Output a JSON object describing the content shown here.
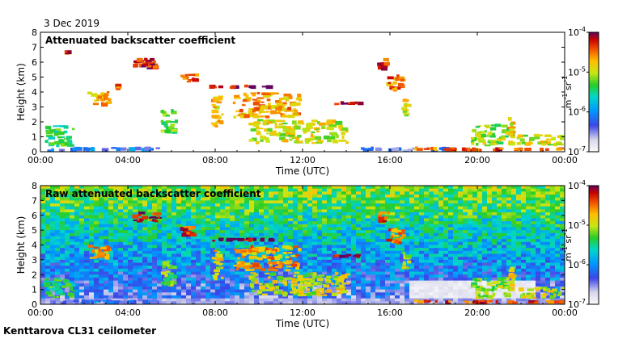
{
  "date_label": "3 Dec 2019",
  "footer_label": "Kenttarova CL31 ceilometer",
  "chart_data": [
    {
      "type": "heatmap",
      "title": "Attenuated backscatter coefficient",
      "xlabel": "Time (UTC)",
      "ylabel": "Height (km)",
      "xlim": [
        0,
        24
      ],
      "ylim": [
        0,
        8
      ],
      "x_tick_labels": [
        "00:00",
        "04:00",
        "08:00",
        "12:00",
        "16:00",
        "20:00",
        "00:00"
      ],
      "y_tick_labels": [
        "0",
        "1",
        "2",
        "3",
        "4",
        "5",
        "6",
        "7",
        "8"
      ],
      "colorbar": {
        "scale": "log",
        "range": [
          1e-07,
          0.0001
        ],
        "tick_labels": [
          {
            "base": "10",
            "exp": "-7"
          },
          {
            "base": "10",
            "exp": "-6"
          },
          {
            "base": "10",
            "exp": "-5"
          },
          {
            "base": "10",
            "exp": "-4"
          }
        ],
        "label": {
          "unit1": "m",
          "exp1": "-1",
          "unit2": "sr",
          "exp2": "-1"
        }
      },
      "background_noise": false,
      "features": [
        {
          "t0": 0.3,
          "t1": 5.5,
          "h0": 0.0,
          "h1": 0.35,
          "level": 0.3
        },
        {
          "t0": 0.1,
          "t1": 1.6,
          "h0": 0.3,
          "h1": 1.8,
          "level": 0.55
        },
        {
          "t0": 1.1,
          "t1": 1.3,
          "h0": 6.7,
          "h1": 6.8,
          "level": 0.9
        },
        {
          "t0": 2.1,
          "t1": 3.3,
          "h0": 3.0,
          "h1": 4.1,
          "level": 0.8
        },
        {
          "t0": 3.4,
          "t1": 3.7,
          "h0": 4.0,
          "h1": 4.6,
          "level": 0.85
        },
        {
          "t0": 4.2,
          "t1": 5.6,
          "h0": 5.5,
          "h1": 6.3,
          "level": 0.95
        },
        {
          "t0": 5.5,
          "t1": 6.3,
          "h0": 1.2,
          "h1": 3.0,
          "level": 0.6
        },
        {
          "t0": 6.4,
          "t1": 7.3,
          "h0": 4.5,
          "h1": 5.3,
          "level": 0.9
        },
        {
          "t0": 7.7,
          "t1": 10.8,
          "h0": 4.2,
          "h1": 4.5,
          "level": 1.0
        },
        {
          "t0": 7.8,
          "t1": 8.4,
          "h0": 1.6,
          "h1": 3.8,
          "level": 0.75
        },
        {
          "t0": 8.8,
          "t1": 12.0,
          "h0": 2.2,
          "h1": 4.0,
          "level": 0.8
        },
        {
          "t0": 9.5,
          "t1": 14.2,
          "h0": 0.5,
          "h1": 2.2,
          "level": 0.7
        },
        {
          "t0": 13.2,
          "t1": 14.9,
          "h0": 3.1,
          "h1": 3.4,
          "level": 0.95
        },
        {
          "t0": 15.4,
          "t1": 16.0,
          "h0": 5.4,
          "h1": 6.3,
          "level": 0.9
        },
        {
          "t0": 15.8,
          "t1": 16.8,
          "h0": 4.0,
          "h1": 5.2,
          "level": 0.85
        },
        {
          "t0": 16.5,
          "t1": 17.0,
          "h0": 2.3,
          "h1": 3.6,
          "level": 0.7
        },
        {
          "t0": 14.5,
          "t1": 19.0,
          "h0": 0.0,
          "h1": 0.35,
          "level": 0.25
        },
        {
          "t0": 17.1,
          "t1": 18.4,
          "h0": 0.05,
          "h1": 0.35,
          "level": 0.85
        },
        {
          "t0": 18.4,
          "t1": 24.0,
          "h0": 0.0,
          "h1": 0.3,
          "level": 0.9
        },
        {
          "t0": 19.7,
          "t1": 21.8,
          "h0": 0.35,
          "h1": 1.9,
          "level": 0.65
        },
        {
          "t0": 21.4,
          "t1": 21.8,
          "h0": 0.8,
          "h1": 2.6,
          "level": 0.75
        },
        {
          "t0": 21.8,
          "t1": 24.0,
          "h0": 0.35,
          "h1": 1.2,
          "level": 0.7
        }
      ]
    },
    {
      "type": "heatmap",
      "title": "Raw attenuated backscatter coefficient",
      "xlabel": "Time (UTC)",
      "ylabel": "Height (km)",
      "xlim": [
        0,
        24
      ],
      "ylim": [
        0,
        8
      ],
      "x_tick_labels": [
        "00:00",
        "04:00",
        "08:00",
        "12:00",
        "16:00",
        "20:00",
        "00:00"
      ],
      "y_tick_labels": [
        "0",
        "1",
        "2",
        "3",
        "4",
        "5",
        "6",
        "7",
        "8"
      ],
      "colorbar": {
        "scale": "log",
        "range": [
          1e-07,
          0.0001
        ],
        "tick_labels": [
          {
            "base": "10",
            "exp": "-7"
          },
          {
            "base": "10",
            "exp": "-6"
          },
          {
            "base": "10",
            "exp": "-5"
          },
          {
            "base": "10",
            "exp": "-4"
          }
        ],
        "label": {
          "unit1": "m",
          "exp1": "-1",
          "unit2": "sr",
          "exp2": "-1"
        }
      },
      "background_noise": true,
      "features": [
        {
          "t0": 0.3,
          "t1": 5.5,
          "h0": 0.0,
          "h1": 0.35,
          "level": 0.3
        },
        {
          "t0": 0.1,
          "t1": 1.6,
          "h0": 0.3,
          "h1": 1.8,
          "level": 0.55
        },
        {
          "t0": 2.1,
          "t1": 3.3,
          "h0": 3.0,
          "h1": 4.1,
          "level": 0.8
        },
        {
          "t0": 4.2,
          "t1": 5.6,
          "h0": 5.5,
          "h1": 6.3,
          "level": 0.95
        },
        {
          "t0": 5.5,
          "t1": 6.3,
          "h0": 1.2,
          "h1": 3.0,
          "level": 0.6
        },
        {
          "t0": 6.4,
          "t1": 7.3,
          "h0": 4.5,
          "h1": 5.3,
          "level": 0.9
        },
        {
          "t0": 7.7,
          "t1": 10.8,
          "h0": 4.2,
          "h1": 4.5,
          "level": 1.0
        },
        {
          "t0": 7.8,
          "t1": 8.4,
          "h0": 1.6,
          "h1": 3.8,
          "level": 0.75
        },
        {
          "t0": 8.8,
          "t1": 12.0,
          "h0": 2.2,
          "h1": 4.0,
          "level": 0.8
        },
        {
          "t0": 9.5,
          "t1": 14.2,
          "h0": 0.5,
          "h1": 2.2,
          "level": 0.7
        },
        {
          "t0": 13.2,
          "t1": 14.9,
          "h0": 3.1,
          "h1": 3.4,
          "level": 0.95
        },
        {
          "t0": 15.4,
          "t1": 16.0,
          "h0": 5.4,
          "h1": 6.3,
          "level": 0.9
        },
        {
          "t0": 15.8,
          "t1": 16.8,
          "h0": 4.0,
          "h1": 5.2,
          "level": 0.85
        },
        {
          "t0": 16.5,
          "t1": 17.0,
          "h0": 2.3,
          "h1": 3.6,
          "level": 0.7
        },
        {
          "t0": 17.1,
          "t1": 18.4,
          "h0": 0.05,
          "h1": 0.35,
          "level": 0.85
        },
        {
          "t0": 18.4,
          "t1": 24.0,
          "h0": 0.0,
          "h1": 0.3,
          "level": 0.9
        },
        {
          "t0": 19.7,
          "t1": 21.8,
          "h0": 0.35,
          "h1": 1.9,
          "level": 0.65
        },
        {
          "t0": 21.4,
          "t1": 21.8,
          "h0": 0.8,
          "h1": 2.6,
          "level": 0.75
        },
        {
          "t0": 21.8,
          "t1": 24.0,
          "h0": 0.35,
          "h1": 1.2,
          "level": 0.7
        }
      ],
      "clear_zones": [
        {
          "t0": 16.8,
          "t1": 22.6,
          "h0": 0.3,
          "h1": 1.6
        }
      ]
    }
  ]
}
